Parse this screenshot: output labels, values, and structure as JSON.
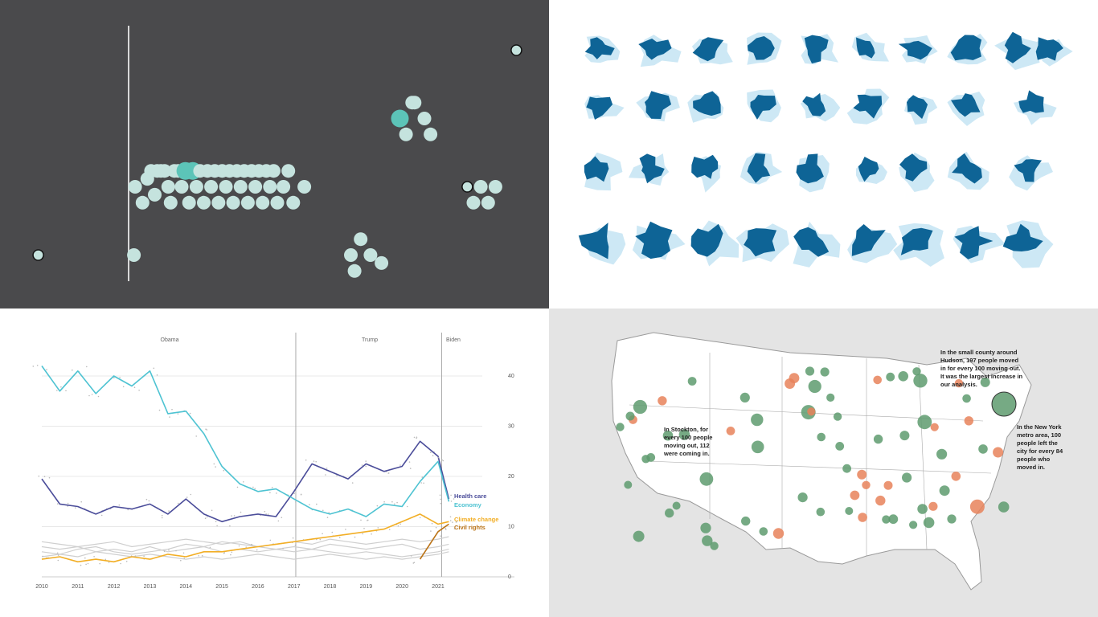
{
  "colors": {
    "beeswarm_bg": "#4a4a4c",
    "beeswarm_light": "#c5e3de",
    "beeswarm_accent": "#5cc4b8",
    "beeswarm_outlier_stroke": "#111111",
    "lake_dark": "#0e6496",
    "lake_light": "#cde8f5",
    "health_care": "#4b4d9a",
    "economy": "#4ec3d2",
    "climate_change": "#f2ae25",
    "civil_rights": "#bb7316",
    "other_lines": "#cfcfcf",
    "map_land": "#ffffff",
    "map_bg": "#e4e4e4",
    "map_green": "#5e9b6f",
    "map_orange": "#e8825b"
  },
  "chart_data": [
    {
      "type": "scatter",
      "subtype": "beeswarm",
      "x": [
        0.05,
        0.83,
        0.84,
        0.9,
        0.94,
        0.97,
        1.0,
        1.02,
        1.05,
        1.08,
        1.11,
        1.13,
        1.16,
        1.19,
        1.22,
        1.25,
        1.28,
        1.31,
        1.34,
        1.37,
        1.4,
        1.43,
        1.46,
        1.49,
        1.52,
        1.55,
        1.58,
        1.61,
        1.64,
        1.67,
        1.7,
        1.73,
        1.76,
        1.79,
        1.82,
        1.85,
        1.88,
        1.91,
        1.94,
        1.97,
        2.0,
        2.05,
        2.09,
        2.13,
        2.22,
        2.6,
        2.63,
        2.68,
        2.76,
        2.85,
        3.0,
        3.05,
        3.1,
        3.12,
        3.2,
        3.25,
        3.55,
        3.6,
        3.66,
        3.72,
        3.78,
        3.95
      ],
      "y": [
        0.5,
        0.5,
        1.5,
        1.5,
        1.5,
        1.5,
        1.5,
        1.5,
        1.5,
        1.5,
        1.5,
        1.5,
        1.5,
        1.5,
        1.5,
        1.5,
        1.5,
        1.5,
        1.5,
        1.5,
        1.5,
        1.5,
        1.5,
        1.5,
        1.5,
        1.5,
        1.5,
        1.5,
        1.5,
        1.5,
        1.5,
        1.5,
        1.5,
        1.5,
        1.5,
        1.5,
        1.5,
        1.5,
        1.5,
        1.5,
        1.5,
        1.5,
        1.5,
        1.5,
        1.5,
        0.5,
        0.5,
        0.5,
        0.5,
        0.5,
        2.5,
        2.5,
        2.5,
        2.5,
        2.5,
        2.5,
        1.5,
        1.5,
        1.5,
        1.5,
        1.5,
        3.5
      ]
    },
    {
      "type": "line",
      "era_labels": [
        "Obama",
        "Trump",
        "Biden"
      ],
      "x_ticks": [
        "2010",
        "2011",
        "2012",
        "2013",
        "2014",
        "2015",
        "2016",
        "2017",
        "2018",
        "2019",
        "2020",
        "2021"
      ],
      "y_ticks": [
        "0",
        "10",
        "20",
        "30",
        "40"
      ],
      "ylim": [
        0,
        44
      ],
      "x": [
        2010,
        2010.5,
        2011,
        2011.5,
        2012,
        2012.5,
        2013,
        2013.5,
        2014,
        2014.5,
        2015,
        2015.5,
        2016,
        2016.5,
        2017,
        2017.5,
        2018,
        2018.5,
        2019,
        2019.5,
        2020,
        2020.5,
        2021,
        2021.3
      ],
      "series": [
        {
          "name": "Health care",
          "values": [
            19.5,
            14.5,
            14.0,
            12.5,
            14.0,
            13.5,
            14.5,
            12.5,
            15.5,
            12.5,
            11.0,
            12.0,
            12.5,
            12.0,
            17.0,
            22.5,
            21.0,
            19.5,
            22.5,
            21.0,
            22.0,
            27.0,
            24.0,
            15.5
          ]
        },
        {
          "name": "Economy",
          "values": [
            42.0,
            37.0,
            41.0,
            36.5,
            40.0,
            38.0,
            41.0,
            32.5,
            33.0,
            28.5,
            22.0,
            18.5,
            17.0,
            17.5,
            15.5,
            13.5,
            12.5,
            13.5,
            12.0,
            14.5,
            14.0,
            19.0,
            23.0,
            15.0
          ]
        },
        {
          "name": "Climate change",
          "values": [
            3.5,
            4.0,
            3.0,
            3.5,
            3.0,
            4.0,
            3.5,
            4.5,
            4.0,
            5.0,
            5.0,
            5.5,
            6.0,
            6.5,
            7.0,
            7.5,
            8.0,
            8.5,
            9.0,
            9.5,
            11.0,
            12.5,
            10.5,
            11.0
          ]
        },
        {
          "name": "Civil rights",
          "values": [
            null,
            null,
            null,
            null,
            null,
            null,
            null,
            null,
            null,
            null,
            null,
            null,
            null,
            null,
            null,
            null,
            null,
            null,
            null,
            null,
            null,
            3.5,
            9.0,
            10.5
          ]
        }
      ],
      "other_series": [
        [
          6.0,
          5.5,
          6.0,
          5.0,
          5.5,
          5.0,
          6.0,
          5.0,
          5.5,
          6.0,
          5.0,
          5.5,
          5.0,
          5.5,
          6.0,
          5.5,
          6.5,
          6.0,
          5.5,
          6.0,
          6.5,
          5.5,
          6.0,
          6.5
        ],
        [
          5.0,
          4.5,
          5.5,
          6.0,
          5.0,
          4.5,
          5.0,
          5.5,
          6.5,
          6.0,
          7.0,
          6.5,
          6.0,
          6.5,
          7.0,
          6.5,
          7.5,
          7.0,
          6.5,
          7.0,
          7.5,
          7.0,
          7.5,
          8.0
        ],
        [
          4.0,
          4.5,
          4.0,
          5.0,
          4.5,
          4.0,
          4.5,
          4.0,
          3.5,
          4.0,
          3.5,
          4.0,
          4.5,
          4.0,
          3.5,
          4.0,
          4.5,
          4.0,
          3.5,
          4.0,
          3.5,
          4.0,
          4.5,
          5.0
        ],
        [
          7.0,
          6.5,
          6.0,
          6.5,
          7.0,
          6.0,
          6.5,
          7.0,
          7.5,
          7.0,
          6.5,
          7.0,
          6.0,
          5.5,
          5.0,
          5.5,
          5.0,
          4.5,
          5.0,
          4.5,
          4.0,
          4.5,
          5.0,
          5.5
        ]
      ]
    },
    {
      "type": "scatter",
      "subtype": "bubble-map",
      "annotations": [
        "In the small county around",
        "Hudson, 197 people moved",
        "in for every 100 moving out.",
        "It was the largest increase in",
        "our analysis.",
        "In Stockton, for",
        "every 100 people",
        "moving out, 112",
        "were coming in.",
        "In the New York",
        "metro area, 100",
        "people left the",
        "city for every 84",
        "people who",
        "moved in."
      ],
      "x": [
        -123.0,
        -122.3,
        -121.3,
        -118.2,
        -117.2,
        -112.0,
        -111.9,
        -104.9,
        -104.8,
        -97.7,
        -96.8,
        -95.4,
        -93.3,
        -90.2,
        -87.6,
        -86.8,
        -84.4,
        -83.0,
        -81.7,
        -80.8,
        -80.2,
        -77.0,
        -75.2,
        -74.0,
        -73.8,
        -71.1,
        -122.7,
        -119.8,
        -115.1,
        -112.1,
        -106.6,
        -98.5,
        -97.5,
        -94.6,
        -90.1,
        -86.2,
        -85.8,
        -82.5,
        -81.4,
        -79.0,
        -78.6,
        -76.6,
        -73.2,
        -72.9,
        -70.3,
        -82.0,
        -83.9,
        -86.5,
        -91.2,
        -92.3,
        -88.0,
        -89.6,
        -93.6,
        -95.9,
        -97.3,
        -100.3,
        -101.9,
        -106.5,
        -108.6,
        -110.9,
        -116.2,
        -117.4,
        -121.5,
        -124.1,
        -120.5,
        -114.0,
        -104.0,
        -99.7,
        -96.0,
        -92.0,
        -87.9,
        -84.2,
        -80.0,
        -77.6,
        -75.5
      ],
      "values": [
        1.0,
        0.9,
        1.12,
        0.95,
        1.05,
        1.1,
        1.08,
        1.15,
        1.12,
        1.2,
        1.1,
        1.05,
        1.02,
        0.96,
        0.92,
        1.1,
        1.08,
        1.03,
        1.05,
        1.12,
        0.98,
        0.97,
        0.98,
        0.84,
        1.97,
        0.95,
        1.06,
        1.04,
        1.09,
        1.1,
        1.04,
        1.03,
        1.02,
        1.01,
        0.94,
        1.02,
        1.04,
        1.07,
        1.1,
        1.06,
        1.08,
        0.99,
        1.02,
        1.03,
        1.07,
        1.11,
        1.05,
        0.97,
        0.96,
        1.01,
        0.98,
        0.99,
        1.02,
        1.01,
        0.97,
        0.96,
        0.95,
        1.04,
        0.97,
        1.08,
        1.09,
        1.05,
        1.07,
        1.03,
        1.02,
        1.06,
        1.05,
        0.94,
        1.01,
        1.0,
        1.02,
        1.04,
        0.99,
        1.03,
        1.02
      ]
    }
  ]
}
